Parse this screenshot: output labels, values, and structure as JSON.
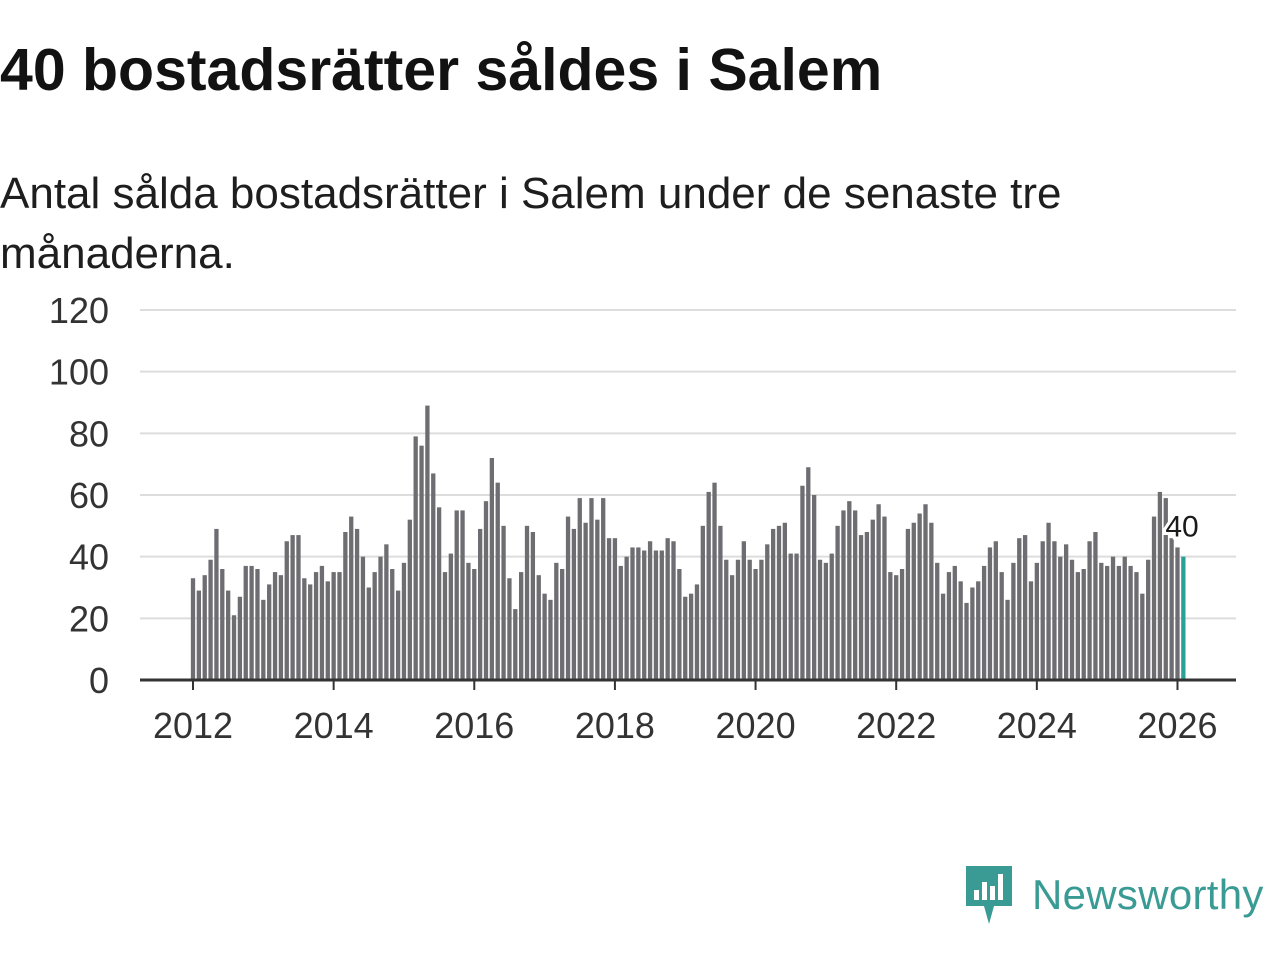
{
  "header": {
    "title": "40 bostadsrätter såldes i Salem",
    "subtitle": "Antal sålda bostadsrätter i Salem under de senaste tre månaderna."
  },
  "brand": {
    "name": "Newsworthy",
    "icon": "newsworthy-logo-icon",
    "color": "#3a9b95"
  },
  "colors": {
    "bar": "#6e6d72",
    "highlight": "#2aa198",
    "grid": "#dddddd",
    "axis": "#333333"
  },
  "chart_data": {
    "type": "bar",
    "title": "40 bostadsrätter såldes i Salem",
    "xlabel": "",
    "ylabel": "",
    "ylim": [
      0,
      120
    ],
    "yticks": [
      "0",
      "20",
      "40",
      "60",
      "80",
      "100",
      "120"
    ],
    "xticks": [
      "2012",
      "2014",
      "2016",
      "2018",
      "2020",
      "2022",
      "2024",
      "2026"
    ],
    "start": "2012-01",
    "frequency": "monthly",
    "highlight_label": "40",
    "values": [
      33,
      29,
      34,
      39,
      49,
      36,
      29,
      21,
      27,
      37,
      37,
      36,
      26,
      31,
      35,
      34,
      45,
      47,
      47,
      33,
      31,
      35,
      37,
      32,
      35,
      35,
      48,
      53,
      49,
      40,
      30,
      35,
      40,
      44,
      36,
      29,
      38,
      52,
      79,
      76,
      89,
      67,
      56,
      35,
      41,
      55,
      55,
      38,
      36,
      49,
      58,
      72,
      64,
      50,
      33,
      23,
      35,
      50,
      48,
      34,
      28,
      26,
      38,
      36,
      53,
      49,
      59,
      51,
      59,
      52,
      59,
      46,
      46,
      37,
      40,
      43,
      43,
      42,
      45,
      42,
      42,
      46,
      45,
      36,
      27,
      28,
      31,
      50,
      61,
      64,
      50,
      39,
      34,
      39,
      45,
      39,
      36,
      39,
      44,
      49,
      50,
      51,
      41,
      41,
      63,
      69,
      60,
      39,
      38,
      41,
      50,
      55,
      58,
      55,
      47,
      48,
      52,
      57,
      53,
      35,
      34,
      36,
      49,
      51,
      54,
      57,
      51,
      38,
      28,
      35,
      37,
      32,
      25,
      30,
      32,
      37,
      43,
      45,
      35,
      26,
      38,
      46,
      47,
      32,
      38,
      45,
      51,
      45,
      40,
      44,
      39,
      35,
      36,
      45,
      48,
      38,
      37,
      40,
      37,
      40,
      37,
      35,
      28,
      39,
      53,
      61,
      59,
      46,
      43,
      40
    ]
  }
}
